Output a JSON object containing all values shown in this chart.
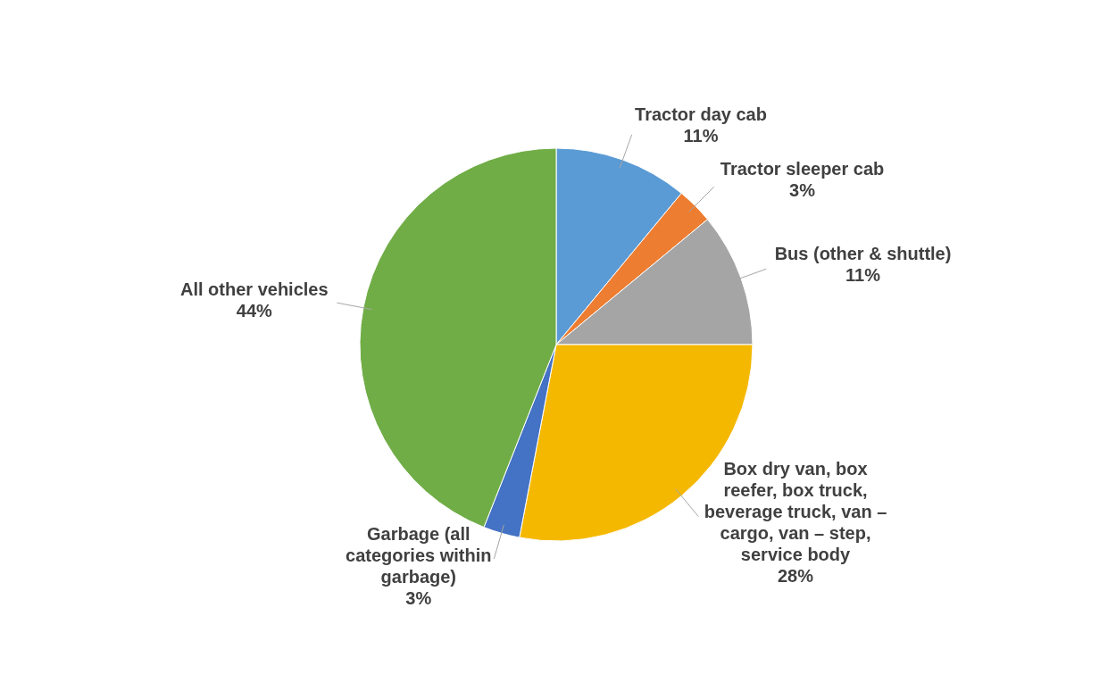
{
  "chart_data": {
    "type": "pie",
    "categories": [
      "Tractor day cab",
      "Tractor sleeper cab",
      "Bus (other & shuttle)",
      "Box dry van, box reefer, box truck, beverage truck, van – cargo, van – step, service body",
      "Garbage (all categories within garbage)",
      "All other vehicles"
    ],
    "values": [
      11,
      3,
      11,
      28,
      3,
      44
    ],
    "value_labels": [
      "11%",
      "3%",
      "11%",
      "28%",
      "3%",
      "44%"
    ],
    "colors": [
      "#5b9bd5",
      "#ed7d31",
      "#a5a5a5",
      "#f5b800",
      "#4472c4",
      "#70ad47"
    ],
    "legend": false
  }
}
